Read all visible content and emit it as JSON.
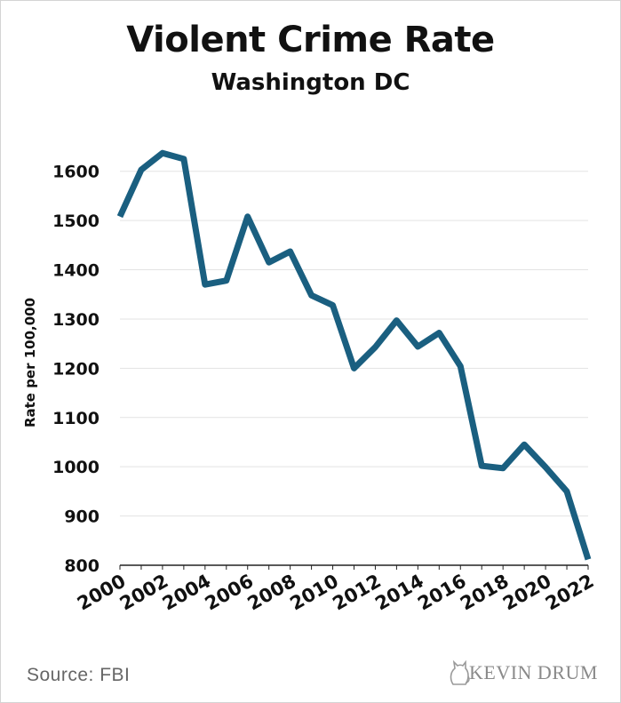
{
  "chart_data": {
    "type": "line",
    "title": "Violent Crime Rate",
    "subtitle": "Washington DC",
    "ylabel": "Rate per 100,000",
    "xlabel": "",
    "ylim": [
      800,
      1650
    ],
    "xlim": [
      2000,
      2022
    ],
    "yticks": [
      800,
      900,
      1000,
      1100,
      1200,
      1300,
      1400,
      1500,
      1600
    ],
    "xtick_labels": [
      "2000",
      "2002",
      "2004",
      "2006",
      "2008",
      "2010",
      "2012",
      "2014",
      "2016",
      "2018",
      "2020",
      "2022"
    ],
    "grid": "horizontal",
    "line_color": "#1a5f80",
    "x": [
      2000,
      2001,
      2002,
      2003,
      2004,
      2005,
      2006,
      2007,
      2008,
      2009,
      2010,
      2011,
      2012,
      2013,
      2014,
      2015,
      2016,
      2017,
      2018,
      2019,
      2020,
      2021,
      2022
    ],
    "values": [
      1508,
      1603,
      1637,
      1625,
      1370,
      1378,
      1508,
      1415,
      1437,
      1348,
      1328,
      1200,
      1243,
      1297,
      1244,
      1272,
      1204,
      1002,
      997,
      1045,
      999,
      950,
      812
    ]
  },
  "footer": {
    "source": "Source: FBI",
    "brand": "KEVIN DRUM"
  }
}
